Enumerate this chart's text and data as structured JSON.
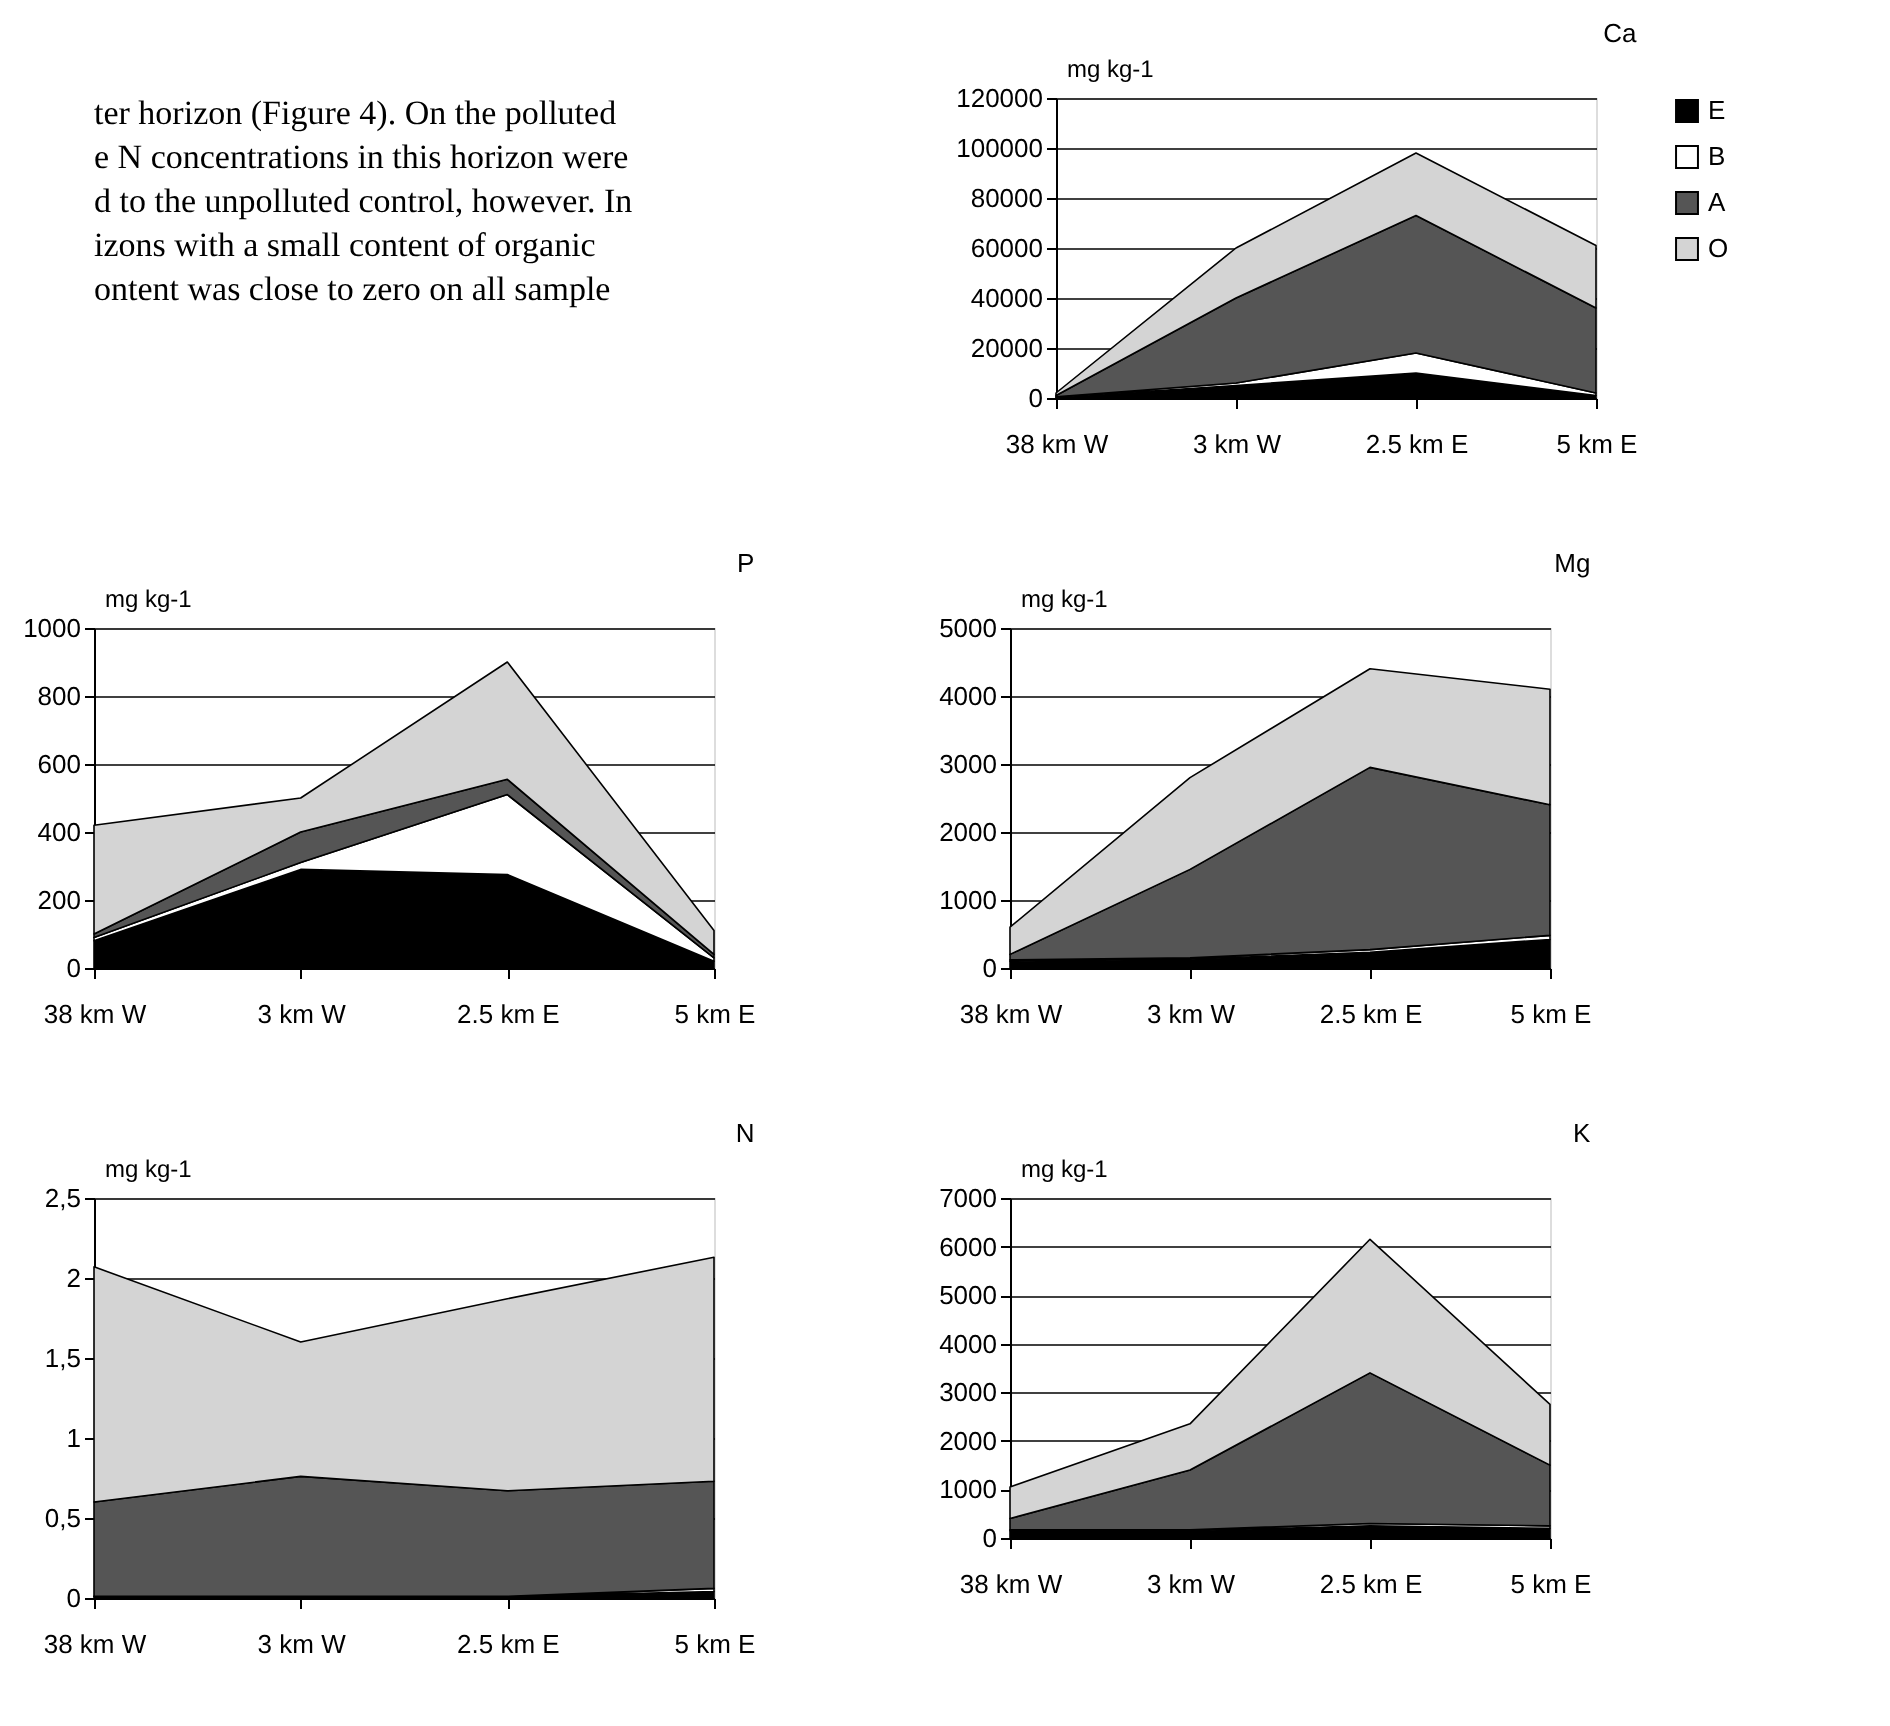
{
  "chart_data": [
    {
      "type": "other",
      "annotations": [
        "ter horizon (Figure 4). On the polluted",
        "e N concentrations in this horizon were",
        "d to the unpolluted control, however. In",
        "izons with a small content of organic",
        "ontent was close to zero on all sample"
      ]
    },
    {
      "type": "area",
      "stacked": true,
      "title": "Ca",
      "ylabel": "mg kg-1",
      "categories": [
        "38 km W",
        "3 km W",
        "2.5 km E",
        "5 km E"
      ],
      "ylim": [
        0,
        120000
      ],
      "yticks": [
        0,
        20000,
        40000,
        60000,
        80000,
        100000,
        120000
      ],
      "grid": "y",
      "legend": "right",
      "series": [
        {
          "name": "E",
          "color": "#000000",
          "values": [
            300,
            5000,
            10000,
            1000
          ]
        },
        {
          "name": "B",
          "color": "#ffffff",
          "values": [
            200,
            1000,
            8000,
            1000
          ]
        },
        {
          "name": "A",
          "color": "#555555",
          "values": [
            500,
            34000,
            55000,
            34000
          ]
        },
        {
          "name": "O",
          "color": "#d4d4d4",
          "values": [
            1000,
            20000,
            25000,
            25000
          ]
        }
      ]
    },
    {
      "type": "area",
      "stacked": true,
      "title": "P",
      "ylabel": "mg kg-1",
      "categories": [
        "38 km W",
        "3 km W",
        "2.5 km E",
        "5 km E"
      ],
      "ylim": [
        0,
        1000
      ],
      "yticks": [
        0,
        200,
        400,
        600,
        800,
        1000
      ],
      "grid": "y",
      "series": [
        {
          "color": "#000000",
          "values": [
            80,
            290,
            275,
            20
          ]
        },
        {
          "color": "#ffffff",
          "values": [
            10,
            20,
            235,
            10
          ]
        },
        {
          "color": "#555555",
          "values": [
            10,
            90,
            45,
            10
          ]
        },
        {
          "color": "#d4d4d4",
          "values": [
            320,
            100,
            345,
            70
          ]
        }
      ]
    },
    {
      "type": "area",
      "stacked": true,
      "title": "Mg",
      "ylabel": "mg kg-1",
      "categories": [
        "38 km W",
        "3 km W",
        "2.5 km E",
        "5 km E"
      ],
      "ylim": [
        0,
        5000
      ],
      "yticks": [
        0,
        1000,
        2000,
        3000,
        4000,
        5000
      ],
      "grid": "y",
      "series": [
        {
          "color": "#000000",
          "values": [
            100,
            130,
            230,
            420
          ]
        },
        {
          "color": "#ffffff",
          "values": [
            20,
            20,
            40,
            60
          ]
        },
        {
          "color": "#555555",
          "values": [
            80,
            1300,
            2680,
            1920
          ]
        },
        {
          "color": "#d4d4d4",
          "values": [
            400,
            1350,
            1450,
            1700
          ]
        }
      ]
    },
    {
      "type": "area",
      "stacked": true,
      "title": "N",
      "ylabel": "mg kg-1",
      "categories": [
        "38 km W",
        "3 km W",
        "2.5 km E",
        "5 km E"
      ],
      "ylim": [
        0,
        2.5
      ],
      "yticks": [
        0,
        {
          "value": 0.5,
          "label": "0,5"
        },
        1,
        {
          "value": 1.5,
          "label": "1,5"
        },
        2,
        {
          "value": 2.5,
          "label": "2,5"
        }
      ],
      "grid": "y",
      "series": [
        {
          "color": "#000000",
          "values": [
            0.01,
            0.01,
            0.01,
            0.04
          ]
        },
        {
          "color": "#ffffff",
          "values": [
            0,
            0,
            0,
            0.02
          ]
        },
        {
          "color": "#555555",
          "values": [
            0.59,
            0.75,
            0.66,
            0.67
          ]
        },
        {
          "color": "#d4d4d4",
          "values": [
            1.47,
            0.84,
            1.2,
            1.4
          ]
        }
      ]
    },
    {
      "type": "area",
      "stacked": true,
      "title": "K",
      "ylabel": "mg kg-1",
      "categories": [
        "38 km W",
        "3 km W",
        "2.5 km E",
        "5 km E"
      ],
      "ylim": [
        0,
        7000
      ],
      "yticks": [
        0,
        1000,
        2000,
        3000,
        4000,
        5000,
        6000,
        7000
      ],
      "grid": "y",
      "series": [
        {
          "color": "#000000",
          "values": [
            150,
            150,
            250,
            200
          ]
        },
        {
          "color": "#ffffff",
          "values": [
            20,
            20,
            50,
            50
          ]
        },
        {
          "color": "#555555",
          "values": [
            230,
            1230,
            3100,
            1250
          ]
        },
        {
          "color": "#d4d4d4",
          "values": [
            650,
            950,
            2750,
            1250
          ]
        }
      ]
    }
  ]
}
